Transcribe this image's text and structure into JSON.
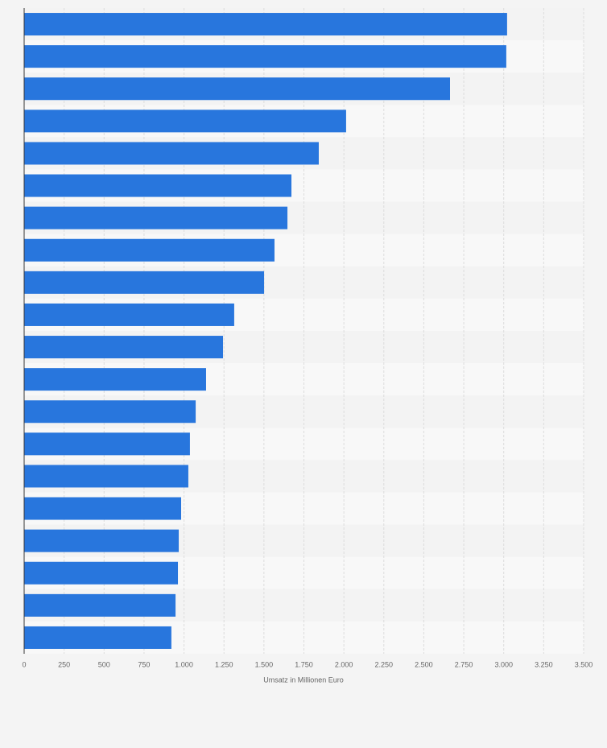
{
  "chart_data": {
    "type": "barh",
    "xlabel": "Umsatz in Millionen Euro",
    "categories": [
      null,
      null,
      null,
      null,
      null,
      null,
      null,
      null,
      null,
      null,
      null,
      null,
      null,
      null,
      null,
      null,
      null,
      null,
      null,
      null
    ],
    "values": [
      3021,
      3016,
      2664,
      2014,
      1843,
      1672,
      1647,
      1566,
      1501,
      1314,
      1244,
      1138,
      1073,
      1037,
      1027,
      982,
      967,
      962,
      947,
      921
    ],
    "color": "#2876dd",
    "xlim": [
      0,
      3500
    ],
    "xticks": [
      0,
      250,
      500,
      750,
      {
        "value": 1000,
        "label": "1.000"
      },
      {
        "value": 1250,
        "label": "1.250"
      },
      {
        "value": 1500,
        "label": "1.500"
      },
      {
        "value": 1750,
        "label": "1.750"
      },
      {
        "value": 2000,
        "label": "2.000"
      },
      {
        "value": 2250,
        "label": "2.250"
      },
      {
        "value": 2500,
        "label": "2.500"
      },
      {
        "value": 2750,
        "label": "2.750"
      },
      {
        "value": 3000,
        "label": "3.000"
      },
      {
        "value": 3250,
        "label": "3.250"
      },
      {
        "value": 3500,
        "label": "3.500"
      }
    ],
    "grid": true
  }
}
